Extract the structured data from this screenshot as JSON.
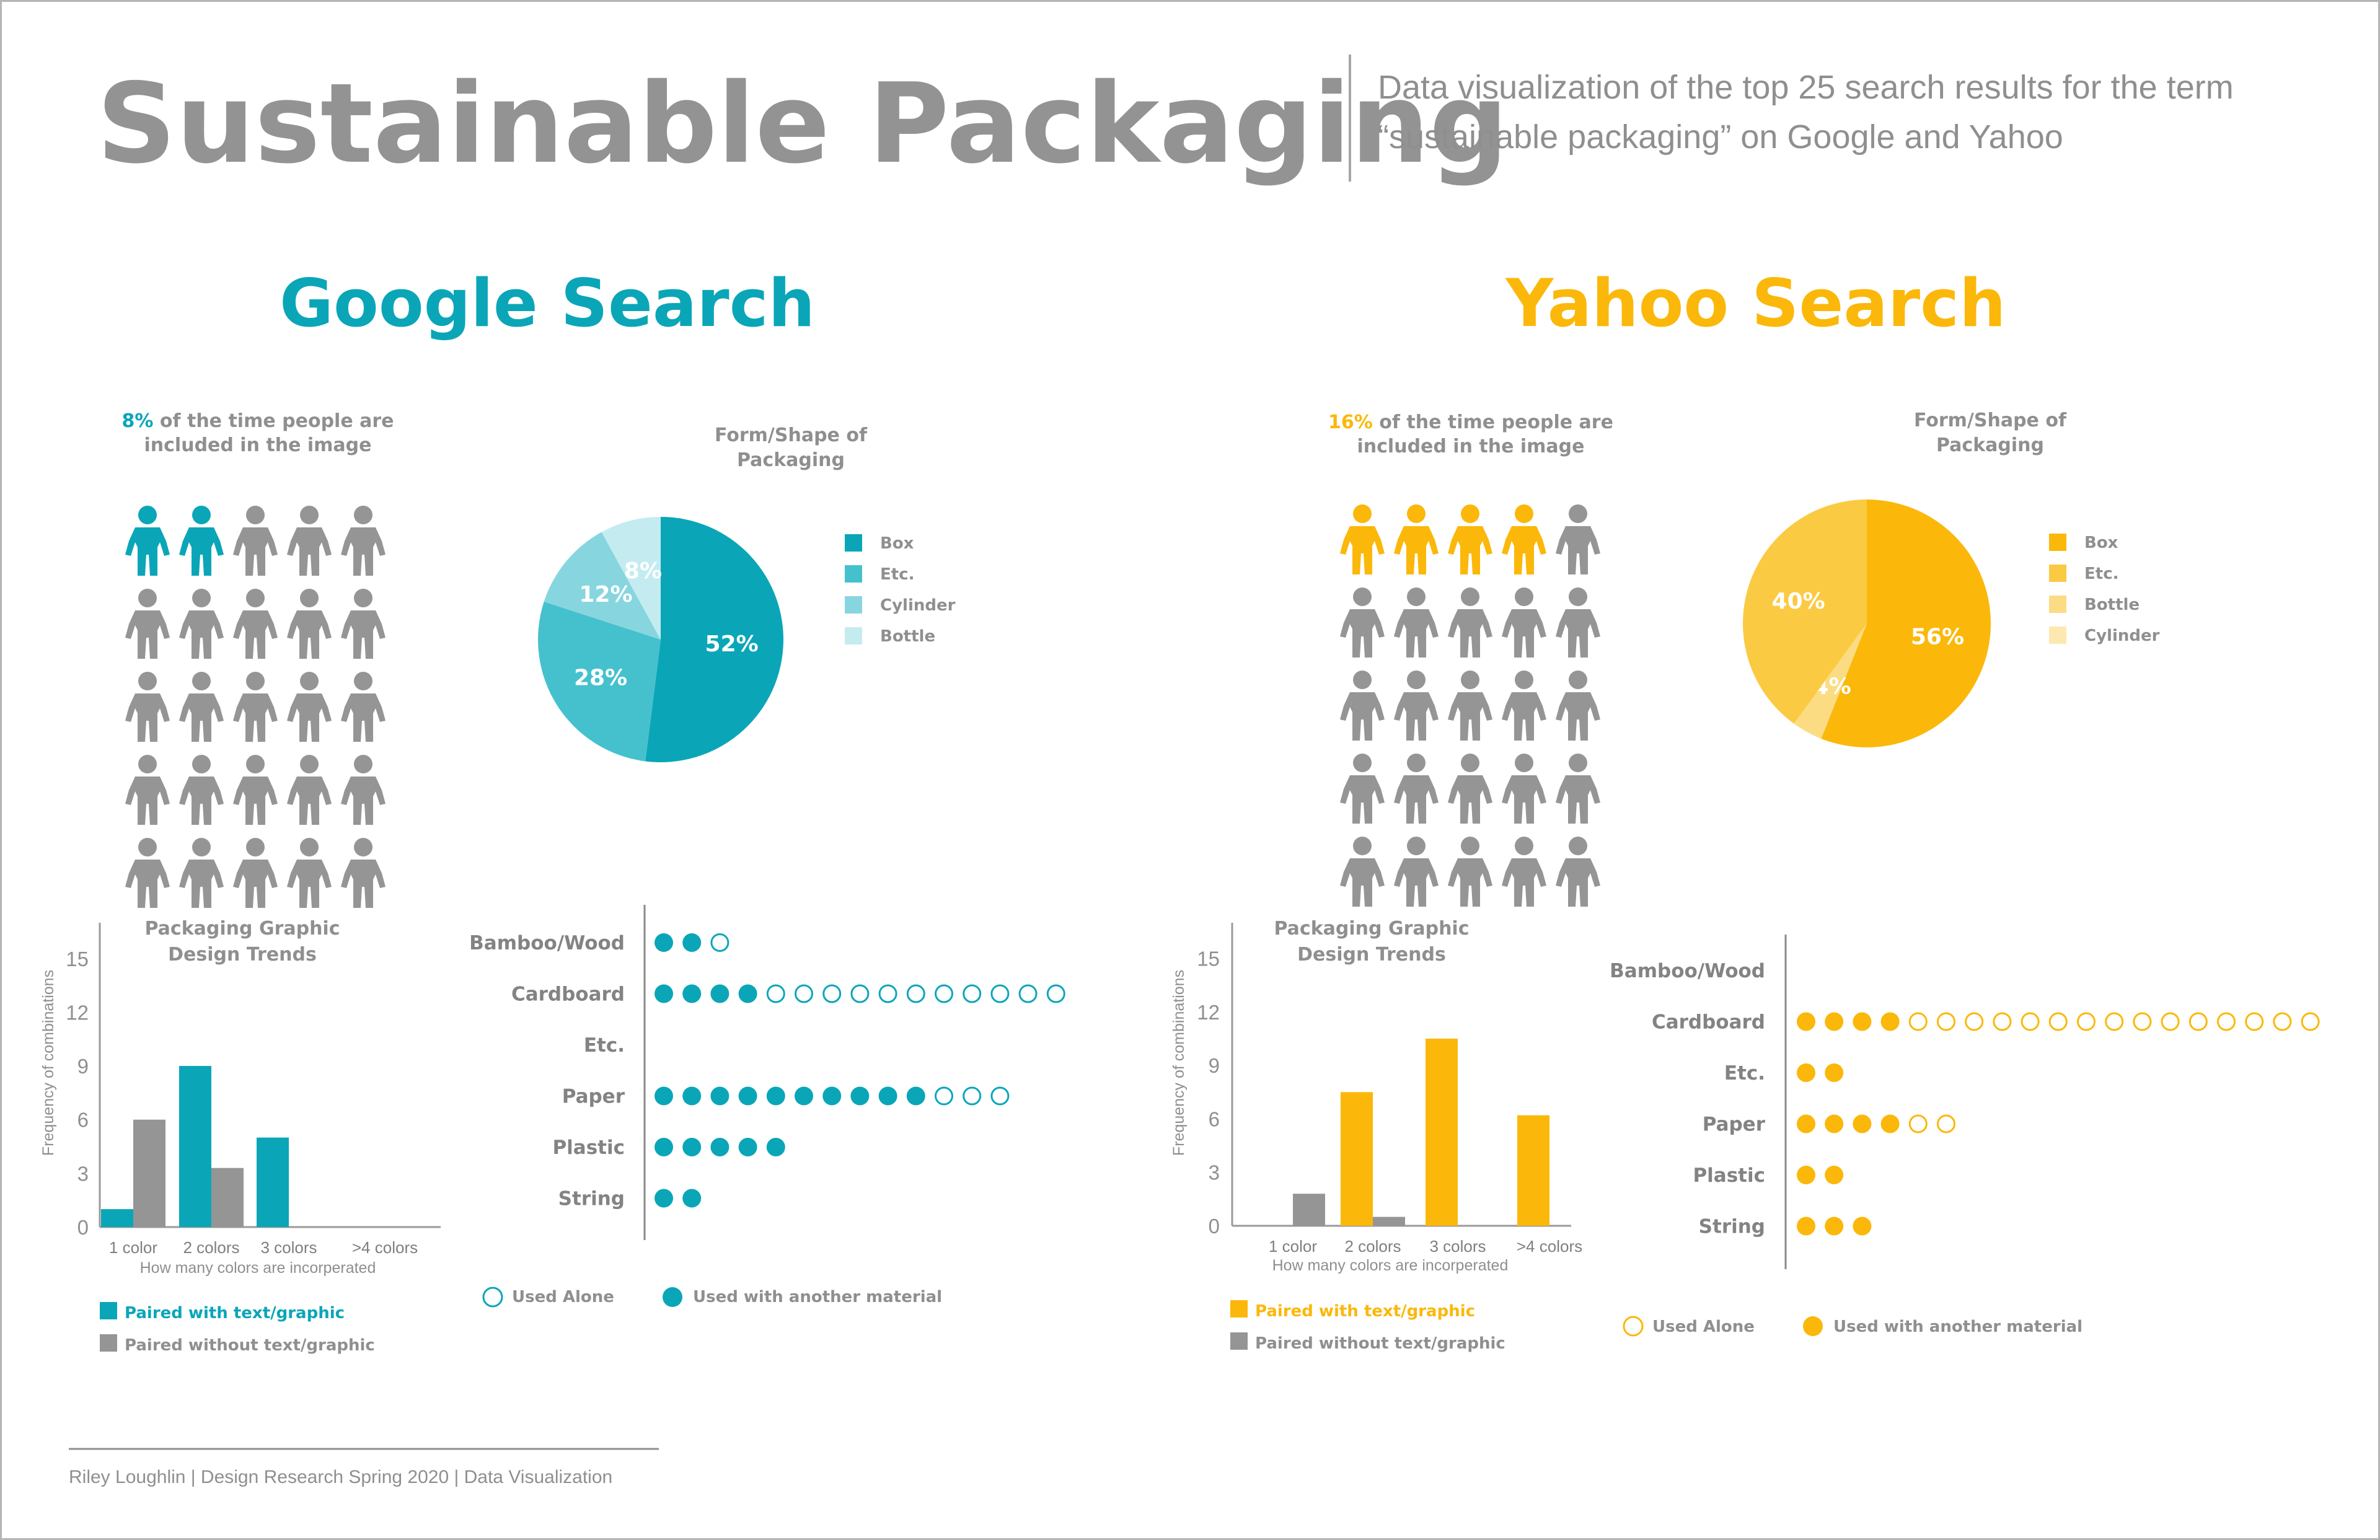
{
  "title": "Sustainable Packaging",
  "subtitle_line1": "Data visualization of the top 25 search results for the term",
  "subtitle_line2": "“sustainable packaging” on Google and Yahoo",
  "footer": "Riley Loughlin | Design Research Spring 2020 | Data Visualization",
  "colors": {
    "title_gray": "#939393",
    "google": "#0aa6b8",
    "yahoo": "#fbb80a",
    "gray_bar": "#959595",
    "text_gray": "#8f8f8f",
    "label_gray": "#838383"
  },
  "icons": {
    "person": "person-icon",
    "dot_filled": "filled-circle-icon",
    "dot_empty": "empty-circle-icon",
    "legend": "square-swatch-icon"
  },
  "panels": [
    {
      "key": "google",
      "heading": "Google Search",
      "people": {
        "percent": "8%",
        "caption_rest": " of the time people are",
        "caption_line2": "included in the image",
        "highlighted": 2,
        "total": 25
      },
      "pie": {
        "title_line1": "Form/Shape of",
        "title_line2": "Packaging",
        "slices": [
          {
            "name": "Box",
            "value": 52,
            "label": "52%",
            "color": "#0aa6b8"
          },
          {
            "name": "Etc.",
            "value": 28,
            "label": "28%",
            "color": "#45c1ce"
          },
          {
            "name": "Cylinder",
            "value": 12,
            "label": "12%",
            "color": "#87d6df"
          },
          {
            "name": "Bottle",
            "value": 8,
            "label": "8%",
            "color": "#c4ecf0"
          }
        ],
        "legend": [
          "Box",
          "Etc.",
          "Cylinder",
          "Bottle"
        ]
      },
      "bar": {
        "title_line1": "Packaging Graphic",
        "title_line2": "Design Trends",
        "ylabel": "Frequency of combinations",
        "xlabel": "How many colors are incorperated",
        "yticks": [
          "0",
          "3",
          "6",
          "9",
          "12",
          "15"
        ],
        "ylim": [
          0,
          17
        ],
        "categories": [
          "1 color",
          "2 colors",
          "3 colors",
          ">4 colors"
        ],
        "series": [
          {
            "name": "Paired with text/graphic",
            "color": "#0aa6b8",
            "values": [
              1,
              9,
              5,
              0
            ]
          },
          {
            "name": "Paired without text/graphic",
            "color": "#959595",
            "values": [
              6,
              3.3,
              0,
              0
            ]
          }
        ]
      },
      "dots": {
        "rows": [
          {
            "label": "Bamboo/Wood",
            "filled": 2,
            "empty": 1
          },
          {
            "label": "Cardboard",
            "filled": 4,
            "empty": 11
          },
          {
            "label": "Etc.",
            "filled": 0,
            "empty": 0
          },
          {
            "label": "Paper",
            "filled": 10,
            "empty": 3
          },
          {
            "label": "Plastic",
            "filled": 5,
            "empty": 0
          },
          {
            "label": "String",
            "filled": 2,
            "empty": 0
          }
        ],
        "legend_alone": "Used Alone",
        "legend_with": "Used with another material"
      }
    },
    {
      "key": "yahoo",
      "heading": "Yahoo Search",
      "people": {
        "percent": "16%",
        "caption_rest": " of the time people are",
        "caption_line2": "included in the image",
        "highlighted": 4,
        "total": 25
      },
      "pie": {
        "title_line1": "Form/Shape of",
        "title_line2": "Packaging",
        "slices": [
          {
            "name": "Box",
            "value": 56,
            "label": "56%",
            "color": "#fbb80a"
          },
          {
            "name": "Cylinder",
            "value": 0,
            "label": "",
            "color": "#fde8b0"
          },
          {
            "name": "Bottle",
            "value": 4,
            "label": "4%",
            "color": "#fcdc83"
          },
          {
            "name": "Etc.",
            "value": 40,
            "label": "40%",
            "color": "#fbca43"
          }
        ],
        "legend": [
          "Box",
          "Etc.",
          "Bottle",
          "Cylinder"
        ]
      },
      "bar": {
        "title_line1": "Packaging Graphic",
        "title_line2": "Design Trends",
        "ylabel": "Frequency of combinations",
        "xlabel": "How many colors are incorperated",
        "yticks": [
          "0",
          "3",
          "6",
          "9",
          "12",
          "15"
        ],
        "ylim": [
          0,
          17
        ],
        "categories": [
          "1 color",
          "2 colors",
          "3 colors",
          ">4 colors"
        ],
        "series": [
          {
            "name": "Paired with text/graphic",
            "color": "#fbb80a",
            "values": [
              0,
              7.5,
              10.5,
              6.2
            ]
          },
          {
            "name": "Paired without text/graphic",
            "color": "#959595",
            "values": [
              1.8,
              0.5,
              0,
              0
            ]
          }
        ]
      },
      "dots": {
        "rows": [
          {
            "label": "Bamboo/Wood",
            "filled": 0,
            "empty": 0
          },
          {
            "label": "Cardboard",
            "filled": 4,
            "empty": 15
          },
          {
            "label": "Etc.",
            "filled": 2,
            "empty": 0
          },
          {
            "label": "Paper",
            "filled": 4,
            "empty": 2
          },
          {
            "label": "Plastic",
            "filled": 2,
            "empty": 0
          },
          {
            "label": "String",
            "filled": 3,
            "empty": 0
          }
        ],
        "legend_alone": "Used Alone",
        "legend_with": "Used with another material"
      }
    }
  ],
  "chart_data": [
    {
      "type": "pie",
      "title": "Form/Shape of Packaging",
      "group": "Google Search",
      "slices": [
        {
          "name": "Box",
          "value": 52
        },
        {
          "name": "Etc.",
          "value": 28
        },
        {
          "name": "Cylinder",
          "value": 12
        },
        {
          "name": "Bottle",
          "value": 8
        }
      ]
    },
    {
      "type": "bar",
      "title": "Packaging Graphic Design Trends",
      "group": "Google Search",
      "categories": [
        "1 color",
        "2 colors",
        "3 colors",
        ">4 colors"
      ],
      "series": [
        {
          "name": "Paired with text/graphic",
          "values": [
            1,
            9,
            5,
            0
          ]
        },
        {
          "name": "Paired without text/graphic",
          "values": [
            6,
            3.3,
            0,
            0
          ]
        }
      ],
      "xlabel": "How many colors are incorperated",
      "ylabel": "Frequency of combinations",
      "ylim": [
        0,
        17
      ]
    },
    {
      "type": "dot",
      "group": "Google Search",
      "categories": [
        "Bamboo/Wood",
        "Cardboard",
        "Etc.",
        "Paper",
        "Plastic",
        "String"
      ],
      "series": [
        {
          "name": "Used with another material",
          "values": [
            2,
            4,
            0,
            10,
            5,
            2
          ]
        },
        {
          "name": "Used Alone",
          "values": [
            1,
            11,
            0,
            3,
            0,
            0
          ]
        }
      ]
    },
    {
      "type": "pie",
      "title": "Form/Shape of Packaging",
      "group": "Yahoo Search",
      "slices": [
        {
          "name": "Box",
          "value": 56
        },
        {
          "name": "Etc.",
          "value": 40
        },
        {
          "name": "Bottle",
          "value": 4
        },
        {
          "name": "Cylinder",
          "value": 0
        }
      ]
    },
    {
      "type": "bar",
      "title": "Packaging Graphic Design Trends",
      "group": "Yahoo Search",
      "categories": [
        "1 color",
        "2 colors",
        "3 colors",
        ">4 colors"
      ],
      "series": [
        {
          "name": "Paired with text/graphic",
          "values": [
            0,
            7.5,
            10.5,
            6.2
          ]
        },
        {
          "name": "Paired without text/graphic",
          "values": [
            1.8,
            0.5,
            0,
            0
          ]
        }
      ],
      "xlabel": "How many colors are incorperated",
      "ylabel": "Frequency of combinations",
      "ylim": [
        0,
        17
      ]
    },
    {
      "type": "dot",
      "group": "Yahoo Search",
      "categories": [
        "Bamboo/Wood",
        "Cardboard",
        "Etc.",
        "Paper",
        "Plastic",
        "String"
      ],
      "series": [
        {
          "name": "Used with another material",
          "values": [
            0,
            4,
            2,
            4,
            2,
            3
          ]
        },
        {
          "name": "Used Alone",
          "values": [
            0,
            15,
            0,
            2,
            0,
            0
          ]
        }
      ]
    }
  ]
}
